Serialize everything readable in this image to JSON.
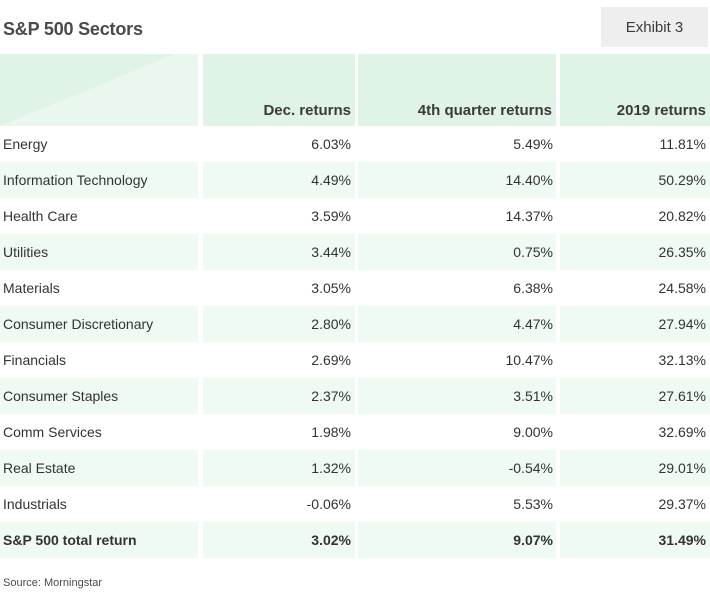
{
  "title": "S&P 500 Sectors",
  "exhibit": "Exhibit 3",
  "source": "Source: Morningstar",
  "colors": {
    "header_bg": "#dff3e6",
    "row_shade": "#effaf3",
    "exhibit_bg": "#eeeeee"
  },
  "chart_data": {
    "type": "table",
    "columns": [
      "",
      "Dec. returns",
      "4th quarter returns",
      "2019 returns"
    ],
    "rows": [
      {
        "sector": "Energy",
        "dec": "6.03%",
        "q4": "5.49%",
        "y2019": "11.81%"
      },
      {
        "sector": "Information Technology",
        "dec": "4.49%",
        "q4": "14.40%",
        "y2019": "50.29%"
      },
      {
        "sector": "Health Care",
        "dec": "3.59%",
        "q4": "14.37%",
        "y2019": "20.82%"
      },
      {
        "sector": "Utilities",
        "dec": "3.44%",
        "q4": "0.75%",
        "y2019": "26.35%"
      },
      {
        "sector": "Materials",
        "dec": "3.05%",
        "q4": "6.38%",
        "y2019": "24.58%"
      },
      {
        "sector": "Consumer Discretionary",
        "dec": "2.80%",
        "q4": "4.47%",
        "y2019": "27.94%"
      },
      {
        "sector": "Financials",
        "dec": "2.69%",
        "q4": "10.47%",
        "y2019": "32.13%"
      },
      {
        "sector": "Consumer Staples",
        "dec": "2.37%",
        "q4": "3.51%",
        "y2019": "27.61%"
      },
      {
        "sector": "Comm Services",
        "dec": "1.98%",
        "q4": "9.00%",
        "y2019": "32.69%"
      },
      {
        "sector": "Real Estate",
        "dec": "1.32%",
        "q4": "-0.54%",
        "y2019": "29.01%"
      },
      {
        "sector": "Industrials",
        "dec": "-0.06%",
        "q4": "5.53%",
        "y2019": "29.37%"
      }
    ],
    "total": {
      "sector": "S&P 500 total return",
      "dec": "3.02%",
      "q4": "9.07%",
      "y2019": "31.49%"
    }
  }
}
